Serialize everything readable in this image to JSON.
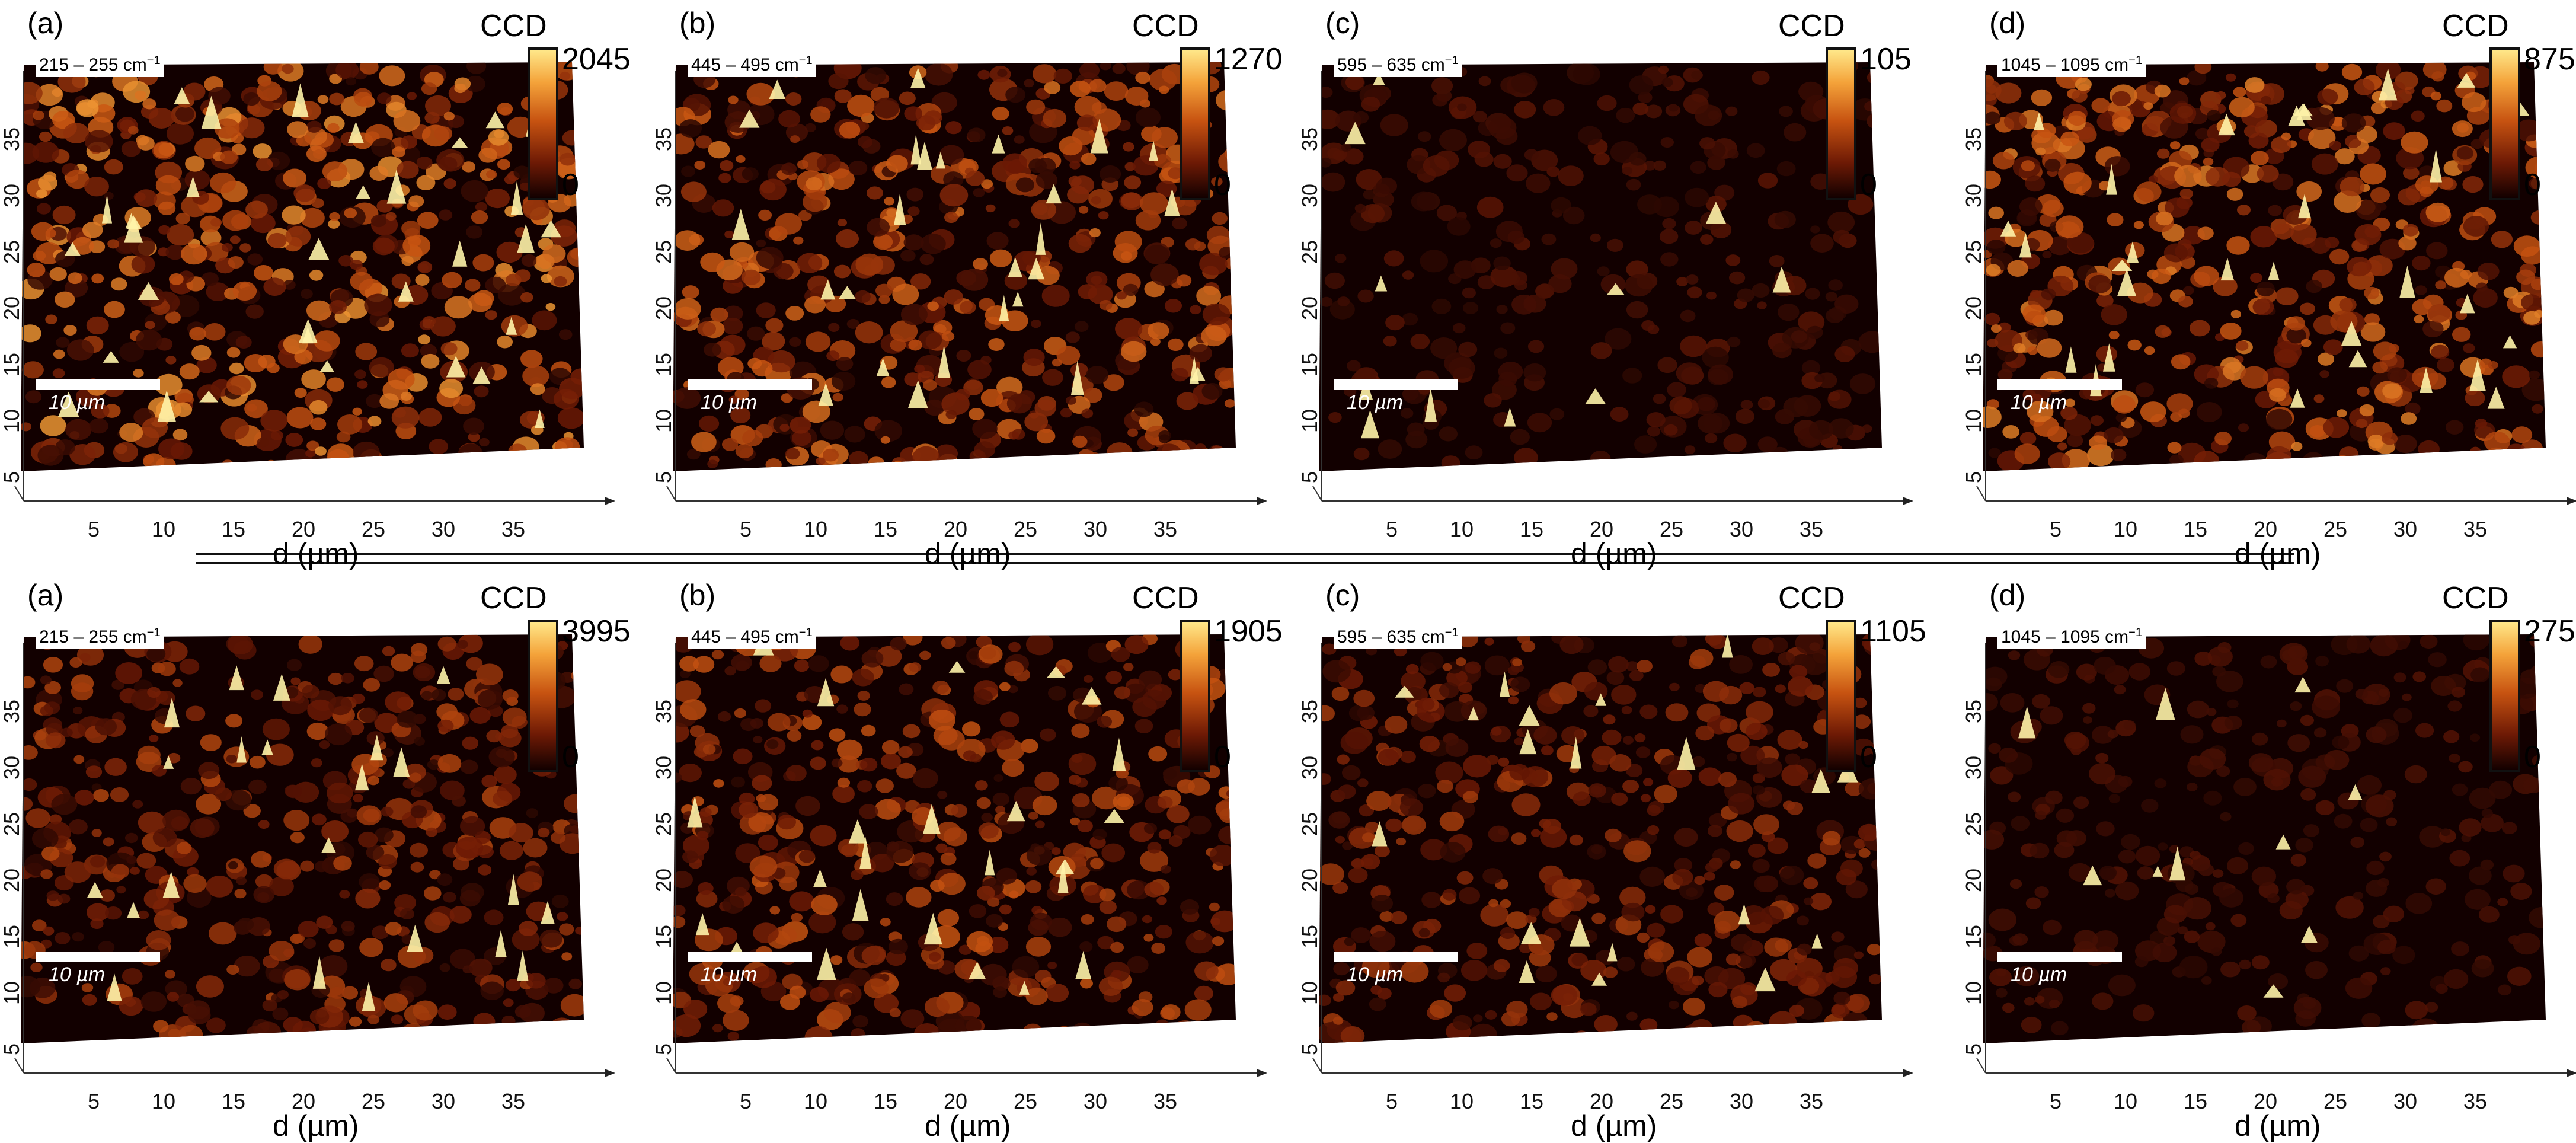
{
  "figure": {
    "colorbar_title": "CCD",
    "x_axis_label": "d (µm)",
    "scale_bar_label": "10 µm",
    "x_ticks": [
      "5",
      "10",
      "15",
      "20",
      "25",
      "30",
      "35"
    ],
    "y_ticks": [
      "5",
      "10",
      "15",
      "20",
      "25",
      "30",
      "35"
    ],
    "colormap": [
      "#120000",
      "#6e1a05",
      "#c75311",
      "#f4a33a",
      "#ffe88a"
    ],
    "rows": [
      {
        "panels": [
          {
            "letter": "(a)",
            "range": "215 – 255 cm",
            "range_unit_exp": "−1",
            "colorbar_max": "2045",
            "colorbar_min": "0",
            "intensity": 0.62
          },
          {
            "letter": "(b)",
            "range": "445 – 495 cm",
            "range_unit_exp": "−1",
            "colorbar_max": "1270",
            "colorbar_min": "0",
            "intensity": 0.5
          },
          {
            "letter": "(c)",
            "range": "595 – 635 cm",
            "range_unit_exp": "−1",
            "colorbar_max": "105",
            "colorbar_min": "0",
            "intensity": 0.08
          },
          {
            "letter": "(d)",
            "range": "1045 – 1095 cm",
            "range_unit_exp": "−1",
            "colorbar_max": "875",
            "colorbar_min": "0",
            "intensity": 0.55
          }
        ]
      },
      {
        "panels": [
          {
            "letter": "(a)",
            "range": "215 – 255 cm",
            "range_unit_exp": "−1",
            "colorbar_max": "3995",
            "colorbar_min": "0",
            "intensity": 0.35
          },
          {
            "letter": "(b)",
            "range": "445 – 495 cm",
            "range_unit_exp": "−1",
            "colorbar_max": "1905",
            "colorbar_min": "0",
            "intensity": 0.4
          },
          {
            "letter": "(c)",
            "range": "595 – 635 cm",
            "range_unit_exp": "−1",
            "colorbar_max": "1105",
            "colorbar_min": "0",
            "intensity": 0.3
          },
          {
            "letter": "(d)",
            "range": "1045 – 1095 cm",
            "range_unit_exp": "−1",
            "colorbar_max": "275",
            "colorbar_min": "0",
            "intensity": 0.06
          }
        ]
      }
    ]
  }
}
